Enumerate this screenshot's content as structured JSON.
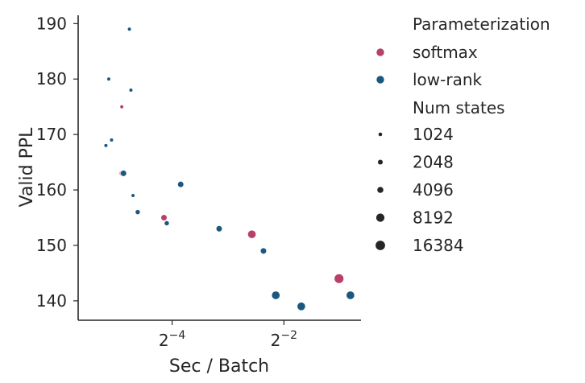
{
  "chart_data": {
    "type": "scatter",
    "xlabel": "Sec / Batch",
    "ylabel": "Valid PPL",
    "x_scale": "log2",
    "xlim": [
      0.0195,
      0.65
    ],
    "ylim": [
      136.5,
      191.5
    ],
    "x_ticks": [
      {
        "value": 0.0625,
        "base": "2",
        "exp": "−4"
      },
      {
        "value": 0.25,
        "base": "2",
        "exp": "−2"
      }
    ],
    "y_ticks": [
      140,
      150,
      160,
      170,
      180,
      190
    ],
    "grid": false,
    "legend_position": "right-outside",
    "legend": {
      "hue_title": "Parameterization",
      "hue_items": [
        {
          "label": "softmax",
          "color": "#b8406a"
        },
        {
          "label": "low-rank",
          "color": "#1b587f"
        }
      ],
      "size_title": "Num states",
      "size_items": [
        {
          "label": "1024",
          "states": 1024
        },
        {
          "label": "2048",
          "states": 2048
        },
        {
          "label": "4096",
          "states": 4096
        },
        {
          "label": "8192",
          "states": 8192
        },
        {
          "label": "16384",
          "states": 16384
        }
      ]
    },
    "series": [
      {
        "name": "softmax",
        "color": "#b8406a",
        "points": [
          {
            "x": 0.0335,
            "y": 175,
            "states": 1024
          },
          {
            "x": 0.0335,
            "y": 163,
            "states": 2048
          },
          {
            "x": 0.0565,
            "y": 155,
            "states": 4096
          },
          {
            "x": 0.168,
            "y": 152,
            "states": 8192
          },
          {
            "x": 0.495,
            "y": 144,
            "states": 16384
          }
        ]
      },
      {
        "name": "low-rank",
        "color": "#1b587f",
        "points": [
          {
            "x": 0.0368,
            "y": 189,
            "states": 1024
          },
          {
            "x": 0.0285,
            "y": 180,
            "states": 1024
          },
          {
            "x": 0.0375,
            "y": 178,
            "states": 1024
          },
          {
            "x": 0.0275,
            "y": 168,
            "states": 1024
          },
          {
            "x": 0.0295,
            "y": 169,
            "states": 1024
          },
          {
            "x": 0.0342,
            "y": 163,
            "states": 4096
          },
          {
            "x": 0.0385,
            "y": 159,
            "states": 1024
          },
          {
            "x": 0.0408,
            "y": 156,
            "states": 2048
          },
          {
            "x": 0.0585,
            "y": 154,
            "states": 2048
          },
          {
            "x": 0.0695,
            "y": 161,
            "states": 4096
          },
          {
            "x": 0.112,
            "y": 153,
            "states": 4096
          },
          {
            "x": 0.194,
            "y": 149,
            "states": 4096
          },
          {
            "x": 0.226,
            "y": 141,
            "states": 8192
          },
          {
            "x": 0.31,
            "y": 139,
            "states": 8192
          },
          {
            "x": 0.57,
            "y": 141,
            "states": 8192
          }
        ]
      }
    ]
  }
}
